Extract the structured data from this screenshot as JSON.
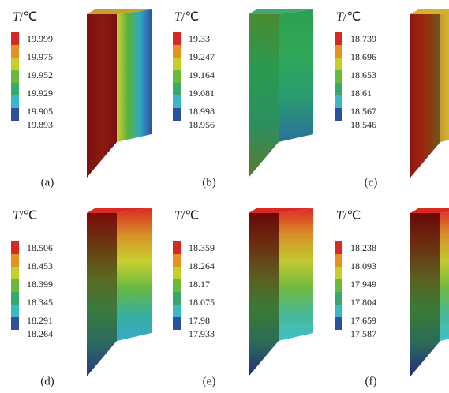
{
  "panels": [
    {
      "variable": "T",
      "unit": "/℃",
      "legend": [
        "19.999",
        "19.975",
        "19.952",
        "19.929",
        "19.905",
        "19.893"
      ],
      "caption": "(a)"
    },
    {
      "variable": "T",
      "unit": "/℃",
      "legend": [
        "19.33",
        "19.247",
        "19.164",
        "19.081",
        "18.998",
        "18.956"
      ],
      "caption": "(b)"
    },
    {
      "variable": "T",
      "unit": "/℃",
      "legend": [
        "18.739",
        "18.696",
        "18.653",
        "18.61",
        "18.567",
        "18.546"
      ],
      "caption": "(c)"
    },
    {
      "variable": "T",
      "unit": "/℃",
      "legend": [
        "18.506",
        "18.453",
        "18.399",
        "18.345",
        "18.291",
        "18.264"
      ],
      "caption": "(d)"
    },
    {
      "variable": "T",
      "unit": "/℃",
      "legend": [
        "18.359",
        "18.264",
        "18.17",
        "18.075",
        "17.98",
        "17.933"
      ],
      "caption": "(e)"
    },
    {
      "variable": "T",
      "unit": "/℃",
      "legend": [
        "18.238",
        "18.093",
        "17.949",
        "17.804",
        "17.659",
        "17.587"
      ],
      "caption": "(f)"
    }
  ]
}
